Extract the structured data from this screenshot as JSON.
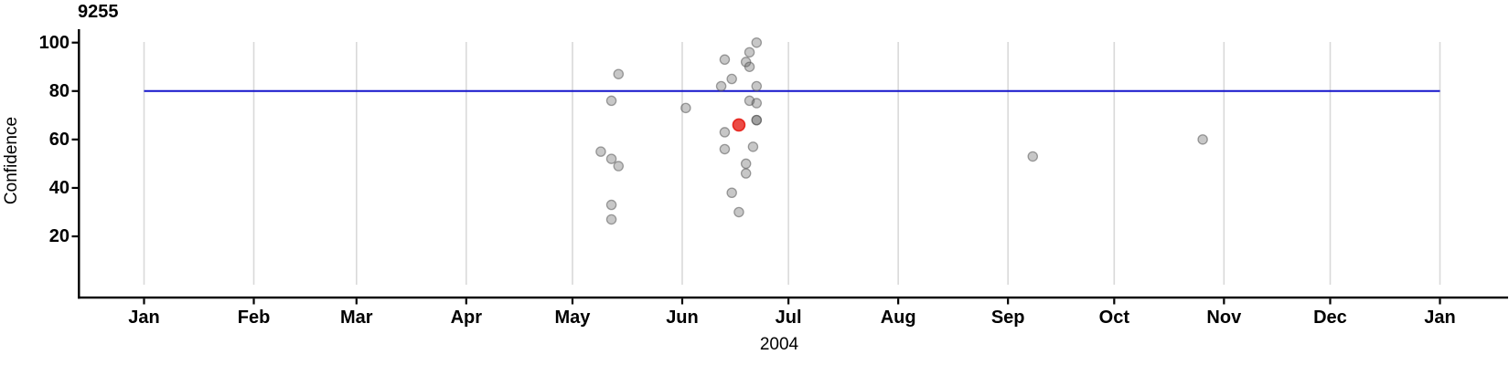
{
  "chart_data": {
    "type": "scatter",
    "title": "9255",
    "xlabel": "2004",
    "ylabel": "Confidence",
    "x_axis": {
      "unit": "month",
      "range": [
        "2004-01-01",
        "2005-01-01"
      ],
      "ticks": [
        {
          "label": "Jan",
          "date": "2004-01-01"
        },
        {
          "label": "Feb",
          "date": "2004-02-01"
        },
        {
          "label": "Mar",
          "date": "2004-03-01"
        },
        {
          "label": "Apr",
          "date": "2004-04-01"
        },
        {
          "label": "May",
          "date": "2004-05-01"
        },
        {
          "label": "Jun",
          "date": "2004-06-01"
        },
        {
          "label": "Jul",
          "date": "2004-07-01"
        },
        {
          "label": "Aug",
          "date": "2004-08-01"
        },
        {
          "label": "Sep",
          "date": "2004-09-01"
        },
        {
          "label": "Oct",
          "date": "2004-10-01"
        },
        {
          "label": "Nov",
          "date": "2004-11-01"
        },
        {
          "label": "Dec",
          "date": "2004-12-01"
        },
        {
          "label": "Jan",
          "date": "2005-01-01"
        }
      ]
    },
    "y_axis": {
      "label": "Confidence",
      "ticks": [
        20,
        40,
        60,
        80,
        100
      ],
      "range": [
        -5,
        106
      ]
    },
    "grid": "vertical-month-lines",
    "legend": "none",
    "reference_line": {
      "y": 80,
      "color": "#1414CC"
    },
    "points": [
      {
        "date": "2004-05-09",
        "confidence": 55,
        "highlighted": false
      },
      {
        "date": "2004-05-12",
        "confidence": 76,
        "highlighted": false
      },
      {
        "date": "2004-05-12",
        "confidence": 52,
        "highlighted": false
      },
      {
        "date": "2004-05-12",
        "confidence": 33,
        "highlighted": false
      },
      {
        "date": "2004-05-12",
        "confidence": 27,
        "highlighted": false
      },
      {
        "date": "2004-05-14",
        "confidence": 87,
        "highlighted": false
      },
      {
        "date": "2004-05-14",
        "confidence": 49,
        "highlighted": false
      },
      {
        "date": "2004-06-02",
        "confidence": 73,
        "highlighted": false
      },
      {
        "date": "2004-06-12",
        "confidence": 82,
        "highlighted": false
      },
      {
        "date": "2004-06-13",
        "confidence": 93,
        "highlighted": false
      },
      {
        "date": "2004-06-13",
        "confidence": 63,
        "highlighted": false
      },
      {
        "date": "2004-06-13",
        "confidence": 56,
        "highlighted": false
      },
      {
        "date": "2004-06-15",
        "confidence": 85,
        "highlighted": false
      },
      {
        "date": "2004-06-15",
        "confidence": 38,
        "highlighted": false
      },
      {
        "date": "2004-06-17",
        "confidence": 30,
        "highlighted": false
      },
      {
        "date": "2004-06-19",
        "confidence": 92,
        "highlighted": false
      },
      {
        "date": "2004-06-19",
        "confidence": 50,
        "highlighted": false
      },
      {
        "date": "2004-06-19",
        "confidence": 46,
        "highlighted": false
      },
      {
        "date": "2004-06-20",
        "confidence": 96,
        "highlighted": false
      },
      {
        "date": "2004-06-20",
        "confidence": 90,
        "highlighted": false
      },
      {
        "date": "2004-06-20",
        "confidence": 76,
        "highlighted": false
      },
      {
        "date": "2004-06-21",
        "confidence": 57,
        "highlighted": false
      },
      {
        "date": "2004-06-22",
        "confidence": 100,
        "highlighted": false
      },
      {
        "date": "2004-06-22",
        "confidence": 82,
        "highlighted": false
      },
      {
        "date": "2004-06-22",
        "confidence": 75,
        "highlighted": false
      },
      {
        "date": "2004-06-22",
        "confidence": 68,
        "highlighted": false
      },
      {
        "date": "2004-06-22",
        "confidence": 68,
        "highlighted": false
      },
      {
        "date": "2004-09-08",
        "confidence": 53,
        "highlighted": false
      },
      {
        "date": "2004-10-26",
        "confidence": 60,
        "highlighted": false
      },
      {
        "date": "2004-06-17",
        "confidence": 66,
        "highlighted": true
      }
    ],
    "colors": {
      "background": "#FFFFFF",
      "text": "#000000",
      "axis": "#000000",
      "grid": "#D9D9D9",
      "reference_line": "#1414CC",
      "point_base": "#555555",
      "point_fill_rendered": "#C9C9C9",
      "point_stroke_rendered": "#A2A2A2",
      "highlight_base": "#E61A12",
      "highlight_fill_rendered": "#ED4C44"
    }
  }
}
